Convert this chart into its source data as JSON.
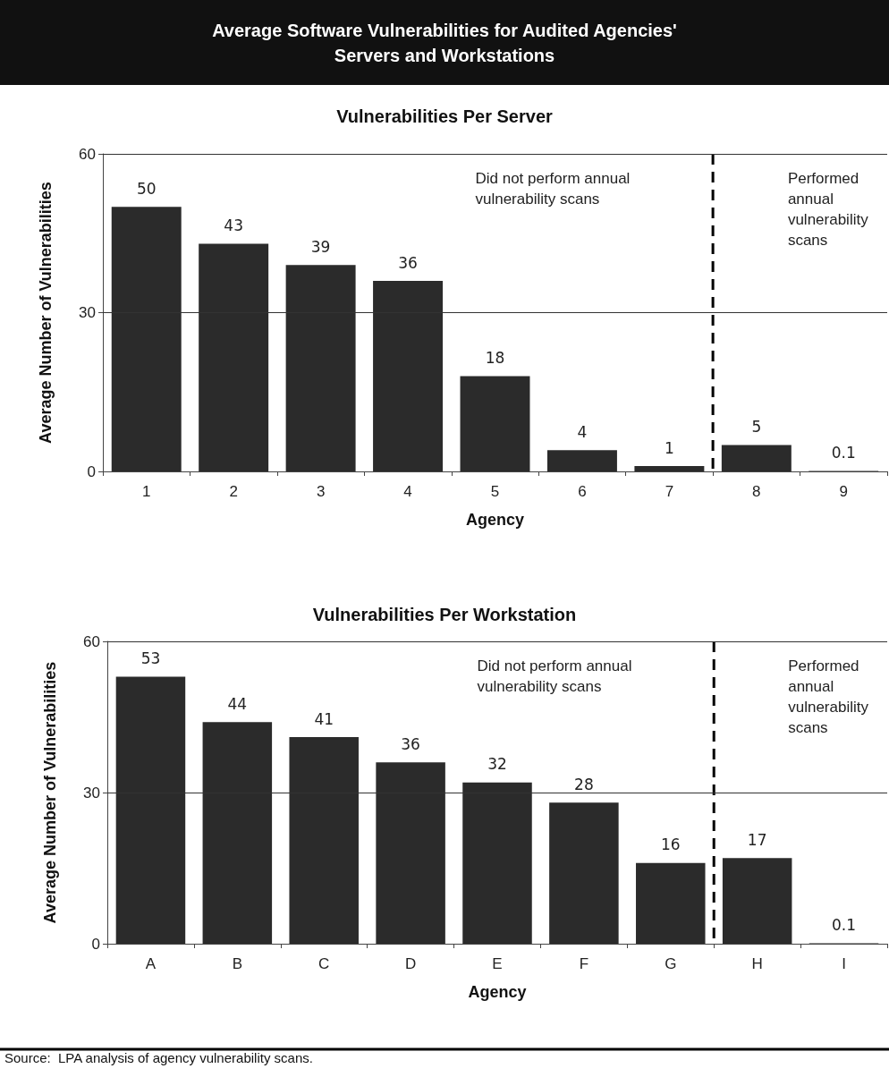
{
  "chart_data": [
    {
      "type": "bar",
      "title": "Average Software Vulnerabilities for Audited Agencies' Servers and Workstations",
      "subtitle": "Vulnerabilities Per Server",
      "xlabel": "Agency",
      "ylabel": "Average Number of Vulnerabilities",
      "categories": [
        "1",
        "2",
        "3",
        "4",
        "5",
        "6",
        "7",
        "8",
        "9"
      ],
      "values": [
        50,
        43,
        39,
        36,
        18,
        4,
        1,
        5,
        0.1
      ],
      "color": "#2b2b2b",
      "ylim": [
        0,
        60
      ],
      "yticks": [
        0,
        30,
        60
      ],
      "data_labels": true,
      "ref_lines": [
        {
          "axis": "x",
          "value": "8",
          "line_style": "dashed",
          "color": "#000000"
        },
        {
          "axis": "y",
          "value": 30,
          "color": "#333333"
        },
        {
          "axis": "y",
          "value": 60,
          "color": "#333333"
        }
      ],
      "annotations": [
        "Did not perform annual vulnerability scans",
        "Performed annual vulnerability scans"
      ]
    },
    {
      "type": "bar",
      "subtitle": "Vulnerabilities Per Workstation",
      "xlabel": "Agency",
      "ylabel": "Average Number of Vulnerabilities",
      "categories": [
        "A",
        "B",
        "C",
        "D",
        "E",
        "F",
        "G",
        "H",
        "I"
      ],
      "values": [
        53,
        44,
        41,
        36,
        32,
        28,
        16,
        17,
        0.1
      ],
      "color": "#2b2b2b",
      "ylim": [
        0,
        60
      ],
      "yticks": [
        0,
        30,
        60
      ],
      "data_labels": true,
      "ref_lines": [
        {
          "axis": "x",
          "value": "H",
          "line_style": "dashed",
          "color": "#000000"
        },
        {
          "axis": "y",
          "value": 30,
          "color": "#333333"
        },
        {
          "axis": "y",
          "value": 60,
          "color": "#333333"
        }
      ],
      "annotations": [
        "Did not perform annual vulnerability scans",
        "Performed annual vulnerability scans",
        "Source:  LPA analysis of agency vulnerability scans."
      ]
    }
  ]
}
